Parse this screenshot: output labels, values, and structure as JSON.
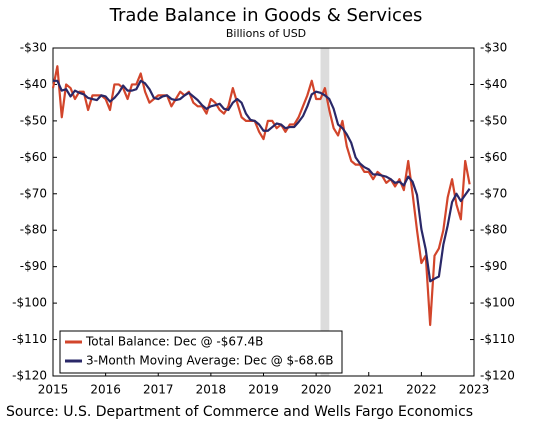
{
  "chart_data": {
    "type": "line",
    "title": "Trade Balance in Goods & Services",
    "subtitle": "Billions of USD",
    "source": "Source: U.S. Department of Commerce and Wells Fargo Economics",
    "x": [
      2015,
      2015.083,
      2015.167,
      2015.25,
      2015.333,
      2015.417,
      2015.5,
      2015.583,
      2015.667,
      2015.75,
      2015.833,
      2015.917,
      2016,
      2016.083,
      2016.167,
      2016.25,
      2016.333,
      2016.417,
      2016.5,
      2016.583,
      2016.667,
      2016.75,
      2016.833,
      2016.917,
      2017,
      2017.083,
      2017.167,
      2017.25,
      2017.333,
      2017.417,
      2017.5,
      2017.583,
      2017.667,
      2017.75,
      2017.833,
      2017.917,
      2018,
      2018.083,
      2018.167,
      2018.25,
      2018.333,
      2018.417,
      2018.5,
      2018.583,
      2018.667,
      2018.75,
      2018.833,
      2018.917,
      2019,
      2019.083,
      2019.167,
      2019.25,
      2019.333,
      2019.417,
      2019.5,
      2019.583,
      2019.667,
      2019.75,
      2019.833,
      2019.917,
      2020,
      2020.083,
      2020.167,
      2020.25,
      2020.333,
      2020.417,
      2020.5,
      2020.583,
      2020.667,
      2020.75,
      2020.833,
      2020.917,
      2021,
      2021.083,
      2021.167,
      2021.25,
      2021.333,
      2021.417,
      2021.5,
      2021.583,
      2021.667,
      2021.75,
      2021.833,
      2021.917,
      2022,
      2022.083,
      2022.167,
      2022.25,
      2022.333,
      2022.417,
      2022.5,
      2022.583,
      2022.667,
      2022.75,
      2022.833,
      2022.917
    ],
    "series": [
      {
        "name": "Total Balance: Dec @ -$67.4B",
        "color": "#d2452b",
        "values": [
          -41,
          -35,
          -49,
          -40,
          -41,
          -44,
          -42,
          -42,
          -47,
          -43,
          -43,
          -43,
          -44,
          -47,
          -40,
          -40,
          -41,
          -44,
          -40,
          -40,
          -37,
          -42,
          -45,
          -44,
          -43,
          -43,
          -43,
          -46,
          -44,
          -42,
          -43,
          -42,
          -45,
          -46,
          -46,
          -48,
          -44,
          -45,
          -47,
          -48,
          -46,
          -41,
          -45,
          -49,
          -50,
          -50,
          -50,
          -53,
          -55,
          -50,
          -50,
          -52,
          -51,
          -53,
          -51,
          -51,
          -49,
          -46,
          -43,
          -39,
          -44,
          -44,
          -41,
          -47,
          -52,
          -54,
          -50,
          -57,
          -61,
          -62,
          -62,
          -64,
          -64,
          -66,
          -64,
          -65,
          -67,
          -66,
          -68,
          -66,
          -69,
          -61,
          -70,
          -80,
          -89,
          -87,
          -106,
          -87,
          -85,
          -80,
          -71,
          -66,
          -73,
          -77,
          -61,
          -67.4
        ]
      },
      {
        "name": "3-Month Moving Average: Dec @ $-68.6B",
        "color": "#2a2868",
        "values": [
          -39,
          -39,
          -41.7,
          -41.3,
          -43.3,
          -41.7,
          -42.3,
          -42.7,
          -43.7,
          -44,
          -44.3,
          -43,
          -43.3,
          -44.7,
          -43.7,
          -42.3,
          -40.3,
          -41.7,
          -41.7,
          -41.3,
          -39,
          -39.7,
          -41.3,
          -43.7,
          -44,
          -43.3,
          -43,
          -44,
          -44.3,
          -44,
          -43,
          -42.3,
          -43.3,
          -44.3,
          -45.7,
          -46.7,
          -46,
          -45.7,
          -45.3,
          -46.7,
          -47,
          -45,
          -44,
          -45,
          -48,
          -49.7,
          -50,
          -51,
          -52.7,
          -52.7,
          -51.7,
          -50.7,
          -51,
          -52,
          -51.7,
          -51.7,
          -50.3,
          -48.7,
          -46,
          -42.7,
          -42,
          -42.3,
          -43,
          -44,
          -46.7,
          -51,
          -52,
          -53.7,
          -56,
          -60,
          -61.7,
          -62.7,
          -63.3,
          -64.7,
          -64.7,
          -65,
          -65.3,
          -66,
          -67,
          -66.7,
          -67.7,
          -65.3,
          -66.7,
          -70.3,
          -79.7,
          -85.3,
          -94,
          -93.3,
          -92.7,
          -84,
          -78.7,
          -72.3,
          -70,
          -72,
          -70.3,
          -68.6
        ]
      }
    ],
    "recession": {
      "start": 2020.083,
      "end": 2020.25,
      "color": "#dcdcdc"
    },
    "xlim": [
      2015,
      2023
    ],
    "xticks": [
      2015,
      2016,
      2017,
      2018,
      2019,
      2020,
      2021,
      2022,
      2023
    ],
    "ylim": [
      -120,
      -30
    ],
    "yticks": [
      {
        "value": -120,
        "label": "-$120"
      },
      {
        "value": -110,
        "label": "-$110"
      },
      {
        "value": -100,
        "label": "-$100"
      },
      {
        "value": -90,
        "label": "-$90"
      },
      {
        "value": -80,
        "label": "-$80"
      },
      {
        "value": -70,
        "label": "-$70"
      },
      {
        "value": -60,
        "label": "-$60"
      },
      {
        "value": -50,
        "label": "-$50"
      },
      {
        "value": -40,
        "label": "-$40"
      },
      {
        "value": -30,
        "label": "-$30"
      }
    ],
    "y2lim": [
      -120,
      -30
    ],
    "y2ticks": [
      {
        "value": -120,
        "label": "-$120"
      },
      {
        "value": -110,
        "label": "-$110"
      },
      {
        "value": -100,
        "label": "-$100"
      },
      {
        "value": -90,
        "label": "-$90"
      },
      {
        "value": -80,
        "label": "-$80"
      },
      {
        "value": -70,
        "label": "-$70"
      },
      {
        "value": -60,
        "label": "-$60"
      },
      {
        "value": -50,
        "label": "-$50"
      },
      {
        "value": -40,
        "label": "-$40"
      },
      {
        "value": -30,
        "label": "-$30"
      }
    ],
    "legend": "lower left"
  }
}
